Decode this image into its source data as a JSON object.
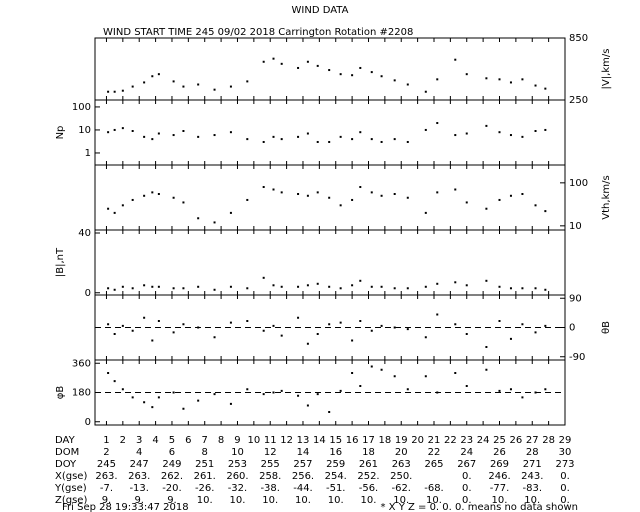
{
  "header": {
    "title": "WIND DATA",
    "subtitle": "WIND START TIME 245 09/02 2018 Carrington Rotation #2208"
  },
  "chart_data": [
    {
      "type": "scatter",
      "ylabel": "|V|,km/s",
      "axis_side": "right",
      "log": false,
      "ylim": [
        250,
        850
      ],
      "yticks": [
        850,
        250
      ],
      "xlim": [
        0.3,
        29
      ],
      "x": [
        1.1,
        1.5,
        2.0,
        2.6,
        3.3,
        3.8,
        4.2,
        5.1,
        5.7,
        6.6,
        7.6,
        8.6,
        9.6,
        10.6,
        11.2,
        11.7,
        12.7,
        13.3,
        13.9,
        14.6,
        15.3,
        16.0,
        16.5,
        17.2,
        17.8,
        18.6,
        19.4,
        20.5,
        21.2,
        22.3,
        23.0,
        24.2,
        25.0,
        25.7,
        26.4,
        27.2,
        27.8
      ],
      "values": [
        330,
        330,
        340,
        380,
        420,
        480,
        500,
        430,
        380,
        400,
        350,
        380,
        430,
        620,
        650,
        600,
        560,
        620,
        580,
        540,
        500,
        490,
        560,
        520,
        480,
        440,
        400,
        330,
        450,
        640,
        500,
        460,
        450,
        420,
        450,
        390,
        360
      ]
    },
    {
      "type": "scatter",
      "ylabel": "Np",
      "axis_side": "left",
      "log": true,
      "ylim": [
        0.3,
        200
      ],
      "yticks": [
        100,
        10,
        1
      ],
      "xlim": [
        0.3,
        29
      ],
      "x": [
        1.1,
        1.5,
        2.0,
        2.6,
        3.3,
        3.8,
        4.2,
        5.1,
        5.7,
        6.6,
        7.6,
        8.6,
        9.6,
        10.6,
        11.2,
        11.7,
        12.7,
        13.3,
        13.9,
        14.6,
        15.3,
        16.0,
        16.5,
        17.2,
        17.8,
        18.6,
        19.4,
        20.5,
        21.2,
        22.3,
        23.0,
        24.2,
        25.0,
        25.7,
        26.4,
        27.2,
        27.8
      ],
      "values": [
        8,
        10,
        12,
        9,
        5,
        4,
        7,
        6,
        9,
        5,
        6,
        8,
        4,
        3,
        5,
        4,
        5,
        7,
        3,
        3,
        5,
        4,
        8,
        4,
        3,
        4,
        3,
        10,
        20,
        6,
        7,
        15,
        8,
        6,
        5,
        9,
        10
      ]
    },
    {
      "type": "scatter",
      "ylabel": "Vth,km/s",
      "axis_side": "right",
      "log": true,
      "ylim": [
        8,
        260
      ],
      "yticks": [
        100,
        10
      ],
      "xlim": [
        0.3,
        29
      ],
      "x": [
        1.1,
        1.5,
        2.0,
        2.6,
        3.3,
        3.8,
        4.2,
        5.1,
        5.7,
        6.6,
        7.6,
        8.6,
        9.6,
        10.6,
        11.2,
        11.7,
        12.7,
        13.3,
        13.9,
        14.6,
        15.3,
        16.0,
        16.5,
        17.2,
        17.8,
        18.6,
        19.4,
        20.5,
        21.2,
        22.3,
        23.0,
        24.2,
        25.0,
        25.7,
        26.4,
        27.2,
        27.8
      ],
      "values": [
        25,
        20,
        30,
        40,
        50,
        60,
        55,
        45,
        35,
        15,
        12,
        20,
        40,
        80,
        70,
        60,
        55,
        50,
        60,
        45,
        30,
        40,
        80,
        60,
        50,
        55,
        45,
        20,
        60,
        70,
        35,
        25,
        40,
        50,
        55,
        30,
        22
      ]
    },
    {
      "type": "scatter",
      "ylabel": "|B|,nT",
      "axis_side": "left",
      "log": false,
      "ylim": [
        -1.5,
        42
      ],
      "yticks": [
        40,
        0
      ],
      "xlim": [
        0.3,
        29
      ],
      "x": [
        1.1,
        1.5,
        2.0,
        2.6,
        3.3,
        3.8,
        4.2,
        5.1,
        5.7,
        6.6,
        7.6,
        8.6,
        9.6,
        10.6,
        11.2,
        11.7,
        12.7,
        13.3,
        13.9,
        14.6,
        15.3,
        16.0,
        16.5,
        17.2,
        17.8,
        18.6,
        19.4,
        20.5,
        21.2,
        22.3,
        23.0,
        24.2,
        25.0,
        25.7,
        26.4,
        27.2,
        27.8
      ],
      "values": [
        3,
        2,
        4,
        3,
        5,
        4,
        4,
        3,
        3,
        4,
        2,
        4,
        3,
        10,
        5,
        4,
        4,
        5,
        6,
        4,
        3,
        5,
        8,
        4,
        4,
        3,
        3,
        4,
        6,
        7,
        5,
        8,
        4,
        3,
        3,
        3,
        2
      ]
    },
    {
      "type": "scatter",
      "ylabel": "θB",
      "axis_side": "right",
      "log": false,
      "ylim": [
        -100,
        100
      ],
      "yticks": [
        90,
        0,
        -90
      ],
      "ref_line": 0,
      "xlim": [
        0.3,
        29
      ],
      "x": [
        1.1,
        1.5,
        2.0,
        2.6,
        3.3,
        3.8,
        4.2,
        5.1,
        5.7,
        6.6,
        7.6,
        8.6,
        9.6,
        10.6,
        11.2,
        11.7,
        12.7,
        13.3,
        13.9,
        14.6,
        15.3,
        16.0,
        16.5,
        17.2,
        17.8,
        18.6,
        19.4,
        20.5,
        21.2,
        22.3,
        23.0,
        24.2,
        25.0,
        25.7,
        26.4,
        27.2,
        27.8
      ],
      "values": [
        10,
        -20,
        5,
        -10,
        30,
        -40,
        20,
        -15,
        10,
        0,
        -30,
        15,
        20,
        -10,
        5,
        -25,
        30,
        -50,
        -20,
        10,
        15,
        -40,
        20,
        -10,
        5,
        0,
        -5,
        -30,
        40,
        10,
        -20,
        -60,
        20,
        -35,
        10,
        -15,
        5
      ]
    },
    {
      "type": "scatter",
      "ylabel": "φB",
      "axis_side": "left",
      "log": false,
      "ylim": [
        -20,
        380
      ],
      "yticks": [
        360,
        180,
        0
      ],
      "ref_line": 180,
      "xlim": [
        0.3,
        29
      ],
      "x": [
        1.1,
        1.5,
        2.0,
        2.6,
        3.3,
        3.8,
        4.2,
        5.1,
        5.7,
        6.6,
        7.6,
        8.6,
        9.6,
        10.6,
        11.2,
        11.7,
        12.7,
        13.3,
        13.9,
        14.6,
        15.3,
        16.0,
        16.5,
        17.2,
        17.8,
        18.6,
        19.4,
        20.5,
        21.2,
        22.3,
        23.0,
        24.2,
        25.0,
        25.7,
        26.4,
        27.2,
        27.8
      ],
      "values": [
        300,
        250,
        200,
        150,
        120,
        90,
        150,
        180,
        80,
        130,
        170,
        110,
        200,
        170,
        180,
        190,
        160,
        100,
        170,
        60,
        190,
        300,
        220,
        340,
        320,
        280,
        200,
        280,
        180,
        300,
        220,
        320,
        190,
        200,
        150,
        180,
        200
      ]
    }
  ],
  "table": {
    "rows": [
      {
        "label": "DAY",
        "values": [
          1,
          2,
          3,
          4,
          5,
          6,
          7,
          8,
          9,
          10,
          11,
          12,
          13,
          14,
          15,
          16,
          17,
          18,
          19,
          20,
          21,
          22,
          23,
          24,
          25,
          26,
          27,
          28,
          29
        ]
      },
      {
        "label": "DOM",
        "values": [
          2,
          4,
          6,
          8,
          10,
          12,
          14,
          16,
          18,
          20,
          22,
          24,
          26,
          28,
          30
        ]
      },
      {
        "label": "DOY",
        "values": [
          245,
          247,
          249,
          251,
          253,
          255,
          257,
          259,
          261,
          263,
          265,
          267,
          269,
          271,
          273
        ]
      },
      {
        "label": "X(gse)",
        "values": [
          "263.",
          "263.",
          "262.",
          "261.",
          "260.",
          "258.",
          "256.",
          "254.",
          "252.",
          "250.",
          null,
          "0.",
          "246.",
          "243.",
          "0."
        ]
      },
      {
        "label": "Y(gse)",
        "values": [
          "-7.",
          "-13.",
          "-20.",
          "-26.",
          "-32.",
          "-38.",
          "-44.",
          "-51.",
          "-56.",
          "-62.",
          "-68.",
          "0.",
          "-77.",
          "-83.",
          "0."
        ]
      },
      {
        "label": "Z(gse)",
        "values": [
          "9.",
          "9.",
          "9.",
          "10.",
          "10.",
          "10.",
          "10.",
          "10.",
          "10.",
          "10.",
          "10.",
          "0.",
          "10.",
          "10.",
          "0."
        ]
      }
    ]
  },
  "footer": {
    "date": "Fri Sep 28 19:33:47 2018",
    "note": "* X Y Z = 0. 0. 0. means no data shown"
  }
}
